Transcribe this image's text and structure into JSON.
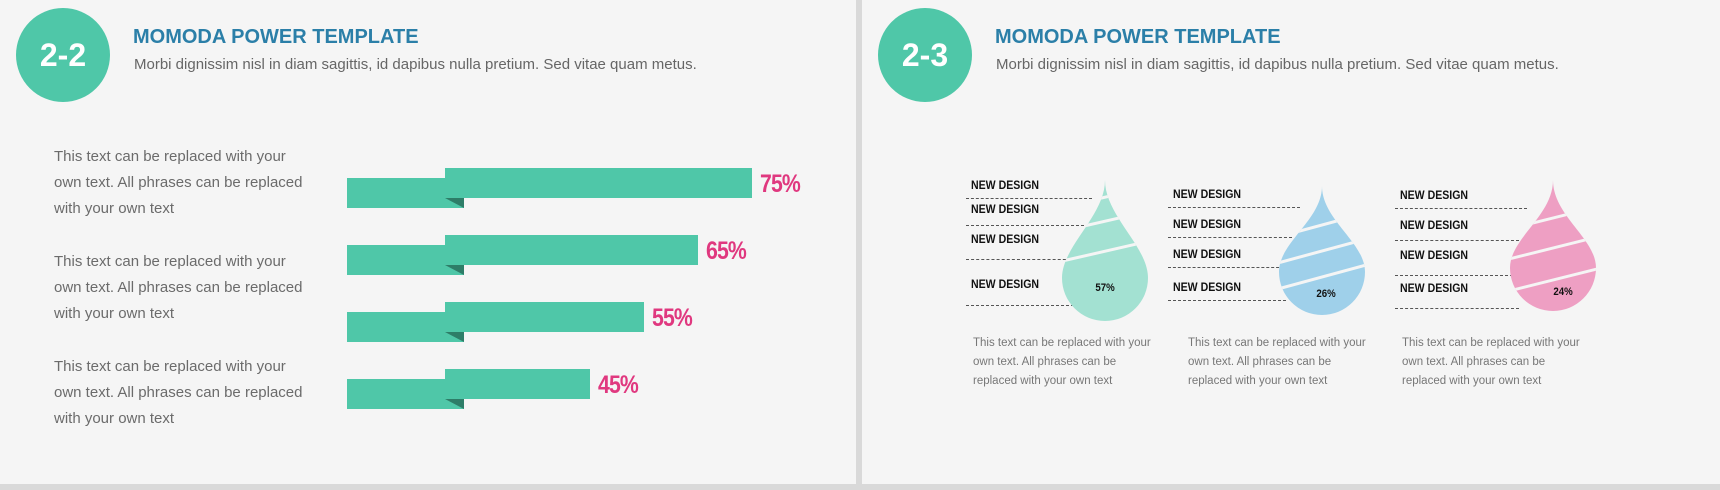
{
  "left": {
    "badge": "2-2",
    "title": "MOMODA POWER TEMPLATE",
    "subtitle": "Morbi dignissim nisl in diam sagittis, id dapibus nulla pretium. Sed vitae quam metus.",
    "paragraphs": [
      "This text can be replaced with your own text. All phrases can be replaced with your own text",
      "This text can be replaced with your own text. All phrases can be replaced with your own text",
      "This text can be replaced with your own text. All phrases can be replaced with your own text"
    ],
    "bars": [
      {
        "label": "75%",
        "value": 75
      },
      {
        "label": "65%",
        "value": 65
      },
      {
        "label": "55%",
        "value": 55
      },
      {
        "label": "45%",
        "value": 45
      }
    ],
    "bar_color": "#4fc7a8",
    "percent_color": "#e0387f"
  },
  "right": {
    "badge": "2-3",
    "title": "MOMODA POWER TEMPLATE",
    "subtitle": "Morbi dignissim nisl in diam sagittis, id dapibus nulla pretium. Sed vitae quam metus.",
    "drops": [
      {
        "color": "#a3e1d2",
        "percent_label": "57%",
        "labels": [
          "NEW DESIGN",
          "NEW DESIGN",
          "NEW DESIGN",
          "NEW DESIGN"
        ],
        "caption": "This text can be replaced with your own text. All phrases can be replaced with your own text"
      },
      {
        "color": "#9fd0ea",
        "percent_label": "26%",
        "labels": [
          "NEW DESIGN",
          "NEW DESIGN",
          "NEW DESIGN",
          "NEW DESIGN"
        ],
        "caption": "This text can be replaced with your own text. All phrases can be replaced with your own text"
      },
      {
        "color": "#ee9fc3",
        "percent_label": "24%",
        "labels": [
          "NEW DESIGN",
          "NEW DESIGN",
          "NEW DESIGN",
          "NEW DESIGN"
        ],
        "caption": "This text can be replaced with your own text. All phrases can be replaced with your own text"
      }
    ]
  }
}
